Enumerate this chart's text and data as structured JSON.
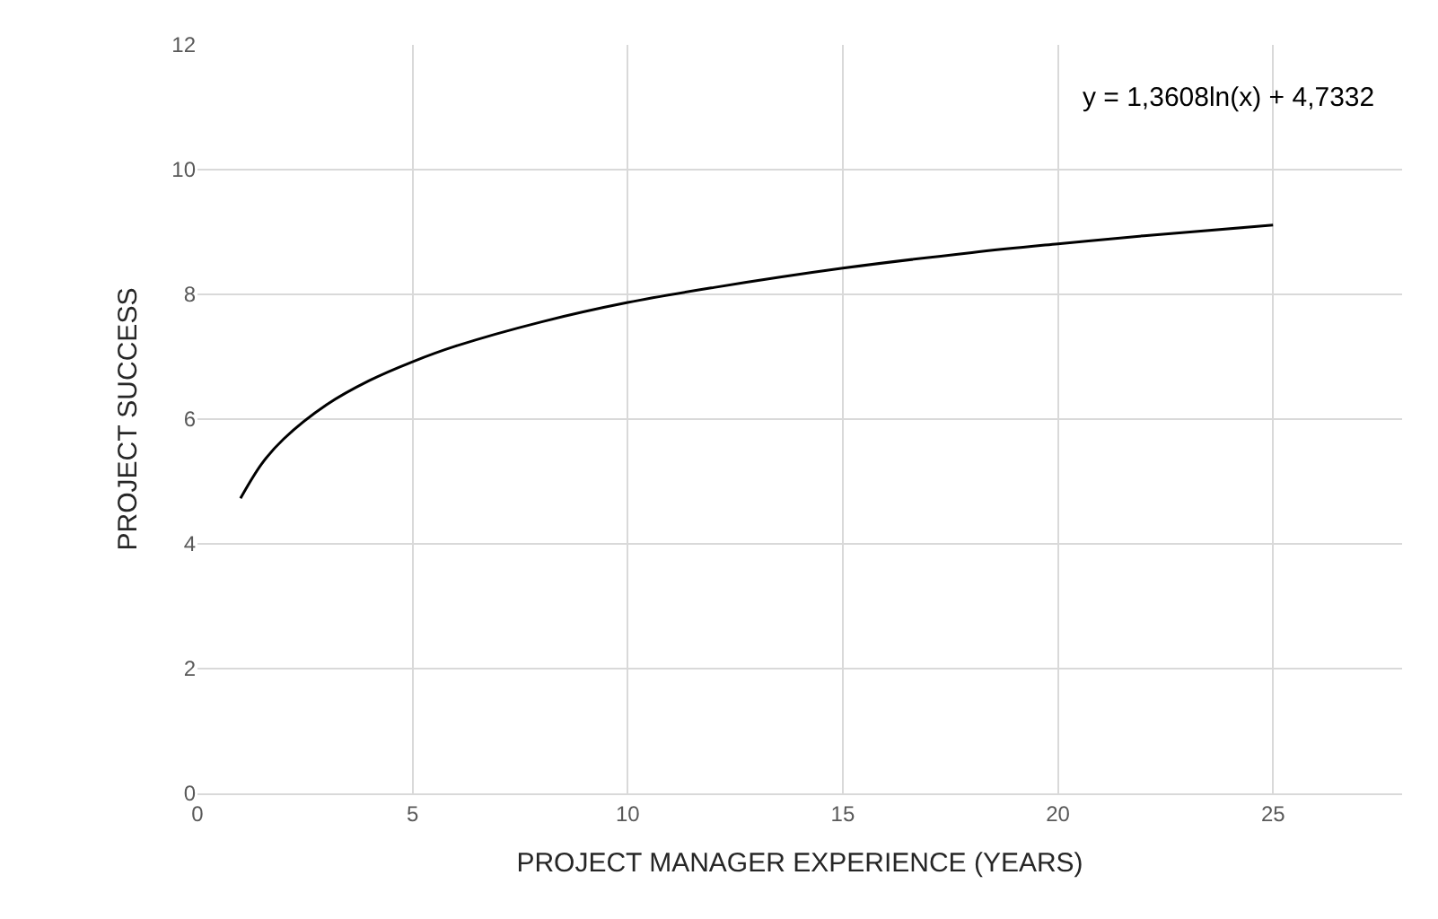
{
  "chart_data": {
    "type": "line",
    "xlabel": "PROJECT MANAGER EXPERIENCE (YEARS)",
    "ylabel": "PROJECT SUCCESS",
    "annotations": [
      "y = 1,3608ln(x) + 4,7332"
    ],
    "x": [
      1,
      1.5,
      2,
      3,
      4,
      5,
      6,
      8,
      10,
      12,
      15,
      18,
      20,
      22,
      25
    ],
    "series": [
      {
        "color": "#000000",
        "values": [
          4.73,
          5.29,
          5.68,
          6.23,
          6.62,
          6.92,
          7.17,
          7.56,
          7.87,
          8.11,
          8.42,
          8.67,
          8.81,
          8.94,
          9.11
        ]
      }
    ],
    "xlim": [
      0,
      28
    ],
    "xticks": [
      0,
      5,
      10,
      15,
      20,
      25
    ],
    "ylim": [
      0,
      12
    ],
    "yticks": [
      0,
      2,
      4,
      6,
      8,
      10,
      12
    ],
    "grid": true,
    "marker": "none",
    "line_style": "solid"
  }
}
